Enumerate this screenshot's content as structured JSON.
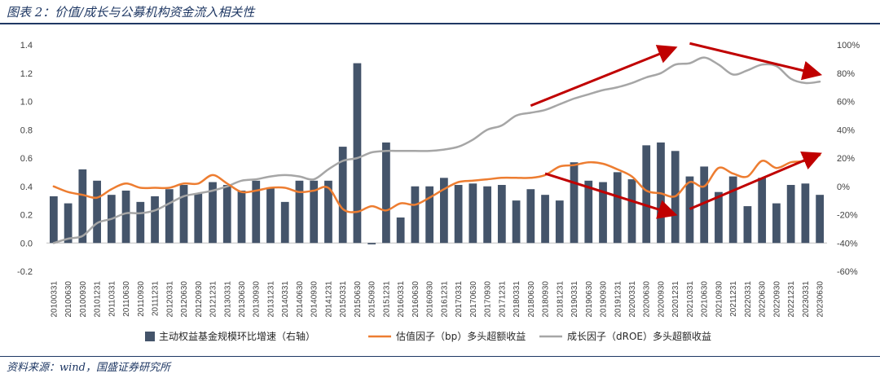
{
  "figure": {
    "title": "图表 2：价值/成长与公募机构资金流入相关性",
    "source": "资料来源：wind，国盛证券研究所"
  },
  "chart_data": {
    "type": "bar+line",
    "categories": [
      "20100331",
      "20100630",
      "20100930",
      "20101231",
      "20110331",
      "20110630",
      "20110930",
      "20111231",
      "20120331",
      "20120630",
      "20120930",
      "20121231",
      "20130331",
      "20130630",
      "20130930",
      "20131231",
      "20140331",
      "20140630",
      "20140930",
      "20141231",
      "20150331",
      "20150630",
      "20150930",
      "20151231",
      "20160331",
      "20160630",
      "20160930",
      "20161231",
      "20170331",
      "20170630",
      "20170930",
      "20171231",
      "20180331",
      "20180630",
      "20180930",
      "20181231",
      "20190331",
      "20190630",
      "20190930",
      "20191231",
      "20200331",
      "20200630",
      "20200930",
      "20201231",
      "20210331",
      "20210630",
      "20210930",
      "20211231",
      "20220331",
      "20220630",
      "20220930",
      "20221231",
      "20230331",
      "20230630"
    ],
    "bar_series": {
      "name": "主动权益基金规模环比增速（右轴）",
      "color": "#44546a",
      "values": [
        0.33,
        0.28,
        0.52,
        0.44,
        0.34,
        0.37,
        0.29,
        0.33,
        0.38,
        0.41,
        0.35,
        0.43,
        0.41,
        0.37,
        0.44,
        0.39,
        0.29,
        0.44,
        0.44,
        0.44,
        0.68,
        1.27,
        -0.01,
        0.71,
        0.18,
        0.4,
        0.4,
        0.46,
        0.41,
        0.42,
        0.4,
        0.41,
        0.3,
        0.38,
        0.34,
        0.3,
        0.57,
        0.44,
        0.43,
        0.5,
        0.45,
        0.69,
        0.71,
        0.65,
        0.47,
        0.54,
        0.36,
        0.47,
        0.26,
        0.46,
        0.28,
        0.41,
        0.42,
        0.34
      ]
    },
    "line_series": [
      {
        "name": "估值因子（bp）多头超额收益",
        "color": "#ed7d31",
        "values": [
          0.0,
          -4.0,
          -6.0,
          -8.0,
          -2.0,
          2.0,
          -1.0,
          -1.0,
          -1.0,
          2.0,
          2.0,
          8.0,
          2.0,
          -4.0,
          -3.0,
          -1.0,
          -1.0,
          -4.0,
          -3.0,
          -1.0,
          -16.0,
          -18.0,
          -14.0,
          -17.0,
          -12.0,
          -13.0,
          -8.0,
          -2.0,
          3.0,
          4.0,
          5.0,
          6.0,
          6.0,
          6.0,
          8.0,
          14.0,
          15.0,
          17.0,
          16.0,
          12.0,
          7.0,
          -3.0,
          -5.0,
          -7.0,
          3.0,
          0.0,
          13.0,
          9.0,
          7.0,
          18.0,
          13.0,
          17.0,
          18.0,
          22.0
        ]
      },
      {
        "name": "成长因子（dROE）多头超额收益",
        "color": "#a6a6a6",
        "values": [
          -40.0,
          -37.0,
          -35.0,
          -26.0,
          -23.0,
          -19.0,
          -19.0,
          -17.0,
          -12.0,
          -7.0,
          -5.0,
          -3.0,
          0.0,
          4.0,
          5.0,
          7.0,
          8.0,
          7.0,
          5.0,
          12.0,
          18.0,
          20.0,
          24.0,
          25.0,
          25.0,
          25.0,
          25.0,
          26.0,
          28.0,
          33.0,
          40.0,
          43.0,
          50.0,
          52.0,
          54.0,
          58.0,
          62.0,
          65.0,
          68.0,
          70.0,
          73.0,
          77.0,
          80.0,
          86.0,
          87.0,
          91.0,
          86.0,
          79.0,
          82.0,
          86.0,
          85.0,
          76.0,
          73.0,
          74.0
        ]
      }
    ],
    "y_left": {
      "range": [
        -0.2,
        1.4
      ],
      "ticks": [
        "1.4",
        "1.2",
        "1.0",
        "0.8",
        "0.6",
        "0.4",
        "0.2",
        "0.0",
        "-0.2"
      ]
    },
    "y_right": {
      "range": [
        -60,
        100
      ],
      "ticks": [
        "100%",
        "80%",
        "60%",
        "40%",
        "20%",
        "0%",
        "-20%",
        "-40%",
        "-60%"
      ]
    },
    "annotations": [
      {
        "type": "arrow",
        "color": "#c00000",
        "from": [
          "20180630",
          57
        ],
        "to": [
          "20201231",
          98
        ],
        "axis": "right"
      },
      {
        "type": "arrow",
        "color": "#c00000",
        "from": [
          "20210331",
          101
        ],
        "to": [
          "20230630",
          79
        ],
        "axis": "right"
      },
      {
        "type": "arrow",
        "color": "#c00000",
        "from": [
          "20180930",
          9
        ],
        "to": [
          "20201231",
          -20
        ],
        "axis": "right"
      },
      {
        "type": "arrow",
        "color": "#c00000",
        "from": [
          "20210331",
          -16
        ],
        "to": [
          "20230630",
          23
        ],
        "axis": "right"
      }
    ],
    "grid": false,
    "legend": "bottom"
  }
}
